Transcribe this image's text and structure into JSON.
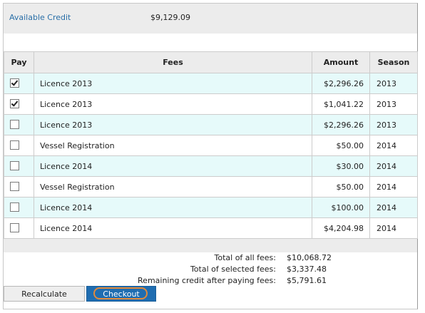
{
  "credit": {
    "label": "Available Credit",
    "value": "$9,129.09"
  },
  "table": {
    "headers": {
      "pay": "Pay",
      "fees": "Fees",
      "amount": "Amount",
      "season": "Season"
    },
    "rows": [
      {
        "checked": true,
        "fee": "Licence 2013",
        "amount": "$2,296.26",
        "season": "2013"
      },
      {
        "checked": true,
        "fee": "Licence 2013",
        "amount": "$1,041.22",
        "season": "2013"
      },
      {
        "checked": false,
        "fee": "Licence 2013",
        "amount": "$2,296.26",
        "season": "2013"
      },
      {
        "checked": false,
        "fee": "Vessel Registration",
        "amount": "$50.00",
        "season": "2014"
      },
      {
        "checked": false,
        "fee": "Licence 2014",
        "amount": "$30.00",
        "season": "2014"
      },
      {
        "checked": false,
        "fee": "Vessel Registration",
        "amount": "$50.00",
        "season": "2014"
      },
      {
        "checked": false,
        "fee": "Licence 2014",
        "amount": "$100.00",
        "season": "2014"
      },
      {
        "checked": false,
        "fee": "Licence 2014",
        "amount": "$4,204.98",
        "season": "2014"
      }
    ]
  },
  "totals": {
    "all_label": "Total of all fees:",
    "all_value": "$10,068.72",
    "selected_label": "Total of selected fees:",
    "selected_value": "$3,337.48",
    "remaining_label": "Remaining credit after paying fees:",
    "remaining_value": "$5,791.61"
  },
  "buttons": {
    "recalculate": "Recalculate",
    "checkout": "Checkout"
  },
  "colors": {
    "link": "#2a6fa8",
    "row_highlight": "#e6fafa",
    "checkout_bg": "#1f6db1",
    "checkout_ring": "#e08a3c"
  }
}
